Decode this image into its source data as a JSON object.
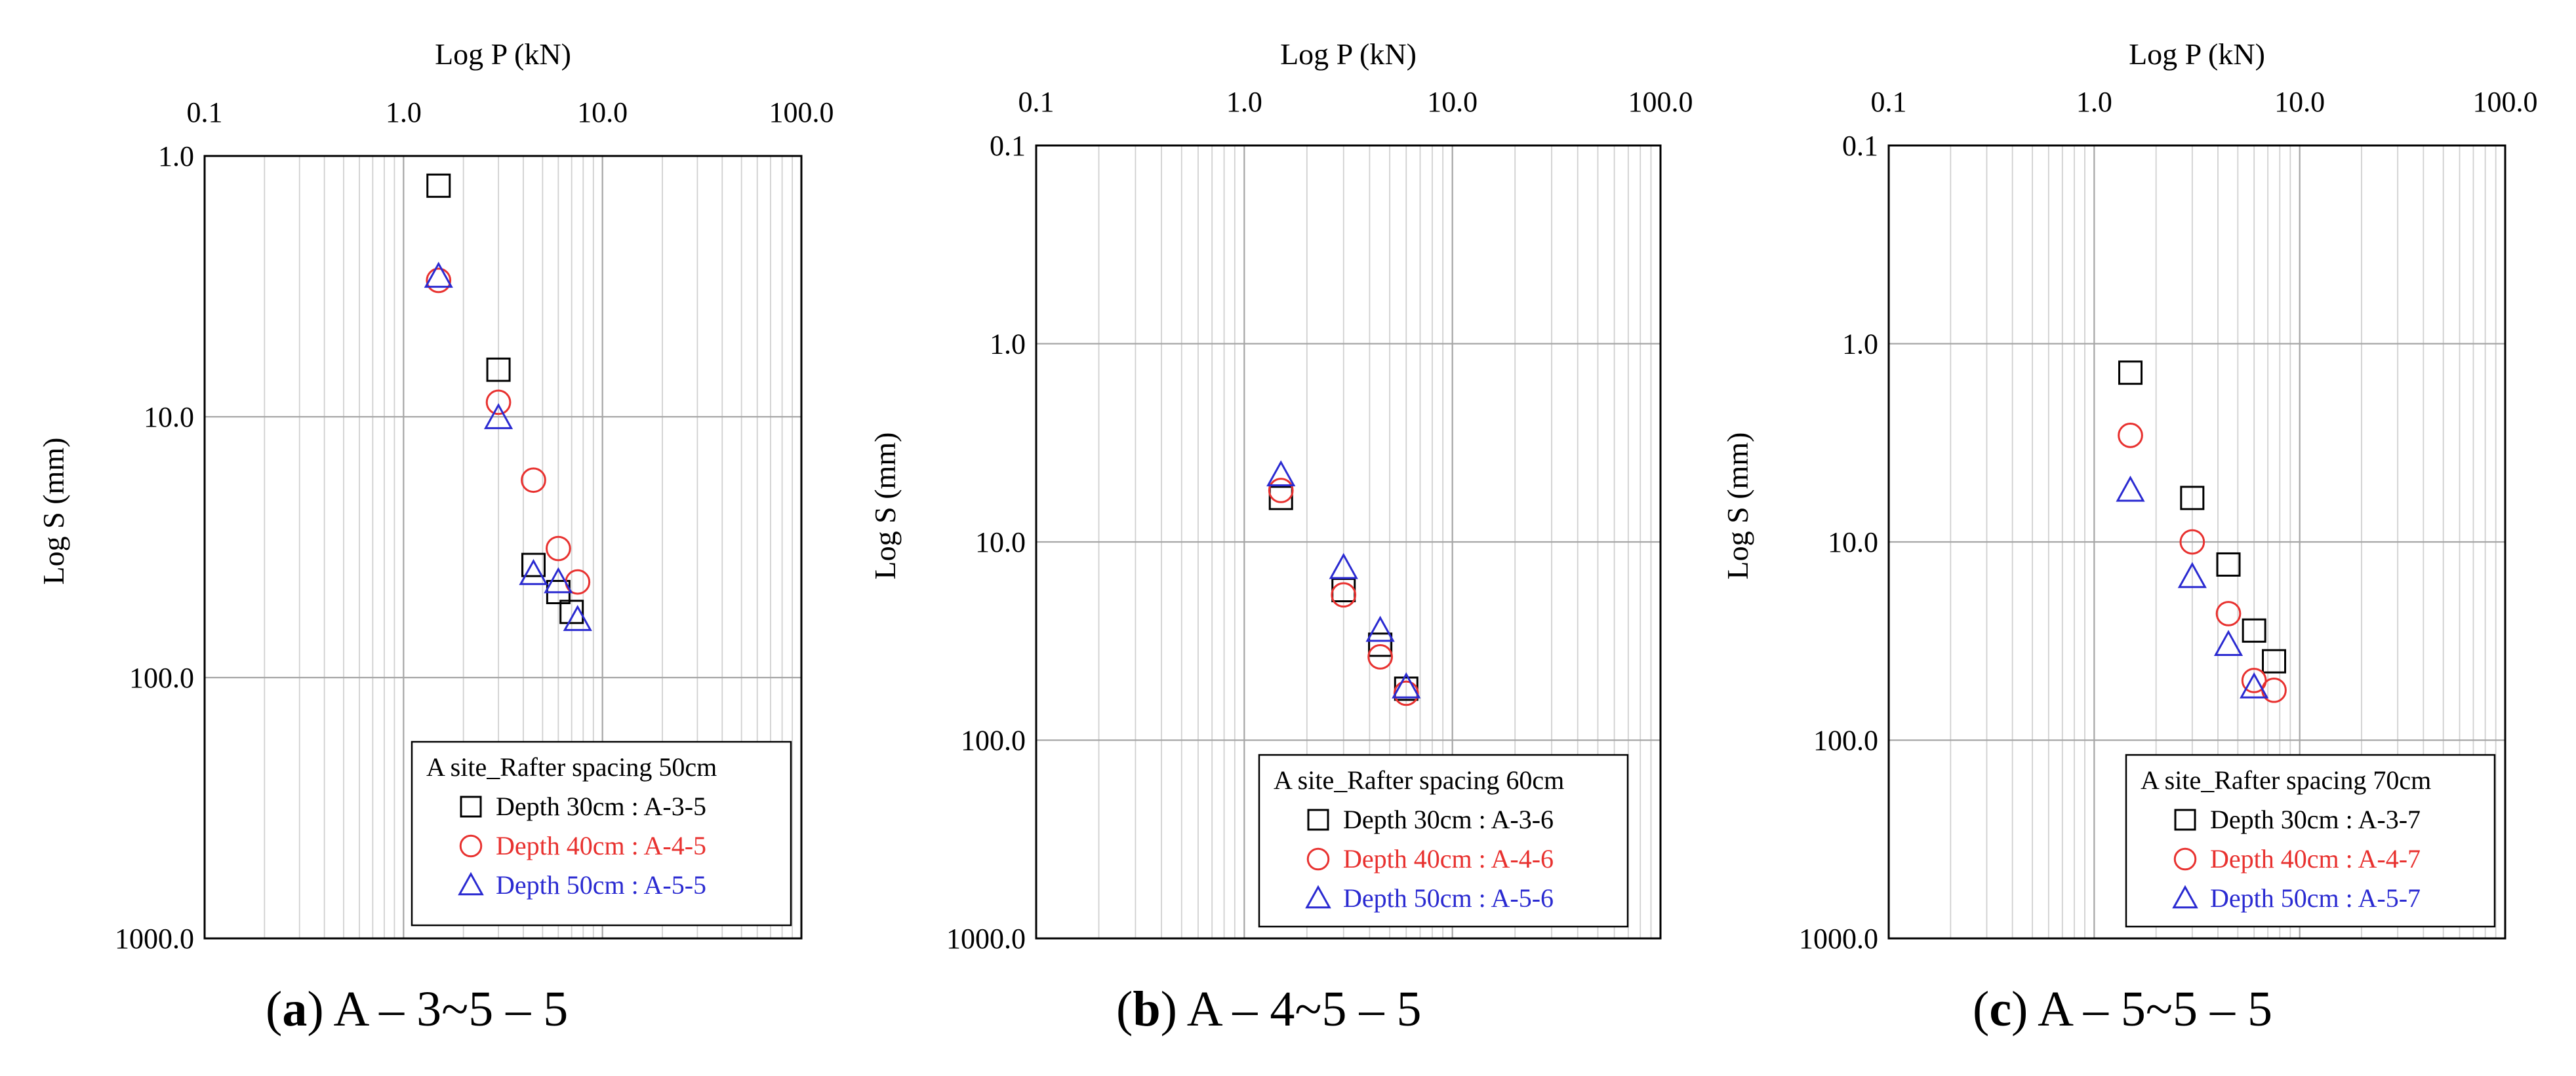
{
  "chart_data": [
    {
      "type": "scatter",
      "panel_label": "a",
      "caption": "A – 3~5 – 5",
      "xlabel": "Log P (kN)",
      "ylabel": "Log S (mm)",
      "xscale": "log",
      "yscale": "log",
      "xlim": [
        0.1,
        100
      ],
      "ylim": [
        1,
        1000
      ],
      "y_inverted": true,
      "xtick_labels": [
        "0.1",
        "1.0",
        "10.0",
        "100.0"
      ],
      "ytick_labels": [
        "1.0",
        "10.0",
        "100.0",
        "1000.0"
      ],
      "legend_title": "A site_Rafter spacing  50cm",
      "legend_position": "bottom-right",
      "series": [
        {
          "name": "Depth 30cm : A-3-5",
          "marker": "square",
          "color": "#000000",
          "x": [
            1.5,
            3.0,
            4.5,
            6.0,
            7.0
          ],
          "y": [
            1.3,
            6.6,
            37.0,
            47.0,
            56.0
          ]
        },
        {
          "name": "Depth 40cm : A-4-5",
          "marker": "circle",
          "color": "#e8312f",
          "x": [
            1.5,
            3.0,
            4.5,
            6.0,
            7.5
          ],
          "y": [
            3.0,
            8.8,
            17.5,
            32.0,
            43.0
          ]
        },
        {
          "name": "Depth 50cm : A-5-5",
          "marker": "triangle",
          "color": "#2a2ad1",
          "x": [
            1.5,
            3.0,
            4.5,
            6.0,
            7.5
          ],
          "y": [
            2.9,
            10.1,
            40.0,
            43.0,
            60.0
          ]
        }
      ]
    },
    {
      "type": "scatter",
      "panel_label": "b",
      "caption": "A – 4~5 – 5",
      "xlabel": "Log P (kN)",
      "ylabel": "Log S (mm)",
      "xscale": "log",
      "yscale": "log",
      "xlim": [
        0.1,
        100
      ],
      "ylim": [
        0.1,
        1000
      ],
      "y_inverted": true,
      "xtick_labels": [
        "0.1",
        "1.0",
        "10.0",
        "100.0"
      ],
      "ytick_labels": [
        "0.1",
        "1.0",
        "10.0",
        "100.0",
        "1000.0"
      ],
      "legend_title": "A site_Rafter spacing  60cm",
      "legend_position": "bottom-right",
      "series": [
        {
          "name": "Depth 30cm : A-3-6",
          "marker": "square",
          "color": "#000000",
          "x": [
            1.5,
            3.0,
            4.5,
            6.0
          ],
          "y": [
            6.0,
            17.5,
            33.0,
            55.0
          ]
        },
        {
          "name": "Depth 40cm : A-4-6",
          "marker": "circle",
          "color": "#e8312f",
          "x": [
            1.5,
            3.0,
            4.5,
            6.0
          ],
          "y": [
            5.5,
            18.5,
            38.0,
            58.0
          ]
        },
        {
          "name": "Depth 50cm : A-5-6",
          "marker": "triangle",
          "color": "#2a2ad1",
          "x": [
            1.5,
            3.0,
            4.5,
            6.0
          ],
          "y": [
            4.6,
            13.5,
            28.0,
            54.0
          ]
        }
      ]
    },
    {
      "type": "scatter",
      "panel_label": "c",
      "caption": "A – 5~5 – 5",
      "xlabel": "Log P (kN)",
      "ylabel": "Log S (mm)",
      "xscale": "log",
      "yscale": "log",
      "xlim": [
        0.1,
        100
      ],
      "ylim": [
        0.1,
        1000
      ],
      "y_inverted": true,
      "xtick_labels": [
        "0.1",
        "1.0",
        "10.0",
        "100.0"
      ],
      "ytick_labels": [
        "0.1",
        "1.0",
        "10.0",
        "100.0",
        "1000.0"
      ],
      "legend_title": "A site_Rafter spacing  70cm",
      "legend_position": "bottom-right",
      "series": [
        {
          "name": "Depth 30cm : A-3-7",
          "marker": "square",
          "color": "#000000",
          "x": [
            1.5,
            3.0,
            4.5,
            6.0,
            7.5
          ],
          "y": [
            1.4,
            6.0,
            13.0,
            28.0,
            40.0
          ]
        },
        {
          "name": "Depth 40cm : A-4-7",
          "marker": "circle",
          "color": "#e8312f",
          "x": [
            1.5,
            3.0,
            4.5,
            6.0,
            7.5
          ],
          "y": [
            2.9,
            10.0,
            23.0,
            50.0,
            56.0
          ]
        },
        {
          "name": "Depth 50cm : A-5-7",
          "marker": "triangle",
          "color": "#2a2ad1",
          "x": [
            1.5,
            3.0,
            4.5,
            6.0
          ],
          "y": [
            5.5,
            15.0,
            33.0,
            54.0
          ]
        }
      ]
    }
  ]
}
